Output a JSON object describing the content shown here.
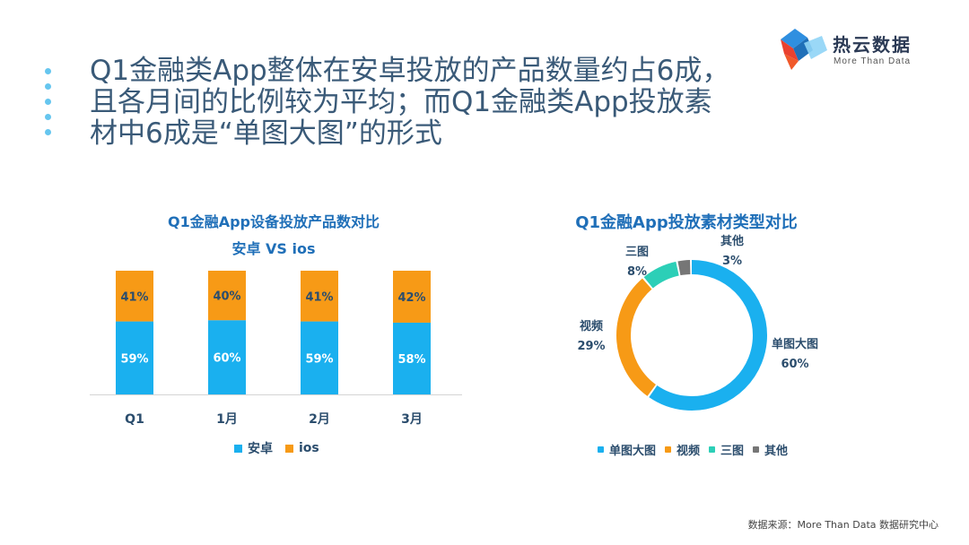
{
  "brand": {
    "name": "热云数据",
    "tagline": "More Than Data"
  },
  "headline": {
    "lines": [
      "Q1金融类App整体在安卓投放的产品数量约占6成，",
      "且各月间的比例较为平均；而Q1金融类App投放素",
      "材中6成是“单图大图”的形式"
    ]
  },
  "colors": {
    "android": "#1ab0ef",
    "ios": "#f79a16",
    "image": "#1ab0ef",
    "video": "#f79a16",
    "three": "#2ccfb7",
    "other": "#767676",
    "title": "#1f6fb8"
  },
  "chart_data": [
    {
      "type": "bar",
      "stacked": true,
      "percent": true,
      "title": "Q1金融App设备投放产品数对比",
      "subtitle": "安卓 VS ios",
      "categories": [
        "Q1",
        "1月",
        "2月",
        "3月"
      ],
      "series": [
        {
          "name": "安卓",
          "values": [
            59,
            60,
            59,
            58
          ],
          "labels": [
            "59%",
            "60%",
            "59%",
            "58%"
          ]
        },
        {
          "name": "ios",
          "values": [
            41,
            40,
            41,
            42
          ],
          "labels": [
            "41%",
            "40%",
            "41%",
            "42%"
          ]
        }
      ],
      "ylim": [
        0,
        100
      ],
      "legend": [
        "安卓",
        "ios"
      ]
    },
    {
      "type": "pie",
      "donut": true,
      "title": "Q1金融App投放素材类型对比",
      "categories": [
        "单图大图",
        "视频",
        "三图",
        "其他"
      ],
      "values": [
        60,
        29,
        8,
        3
      ],
      "labels": [
        "60%",
        "29%",
        "8%",
        "3%"
      ],
      "legend": [
        "单图大图",
        "视频",
        "三图",
        "其他"
      ]
    }
  ],
  "footer": {
    "source": "数据来源：More Than Data 数据研究中心"
  }
}
